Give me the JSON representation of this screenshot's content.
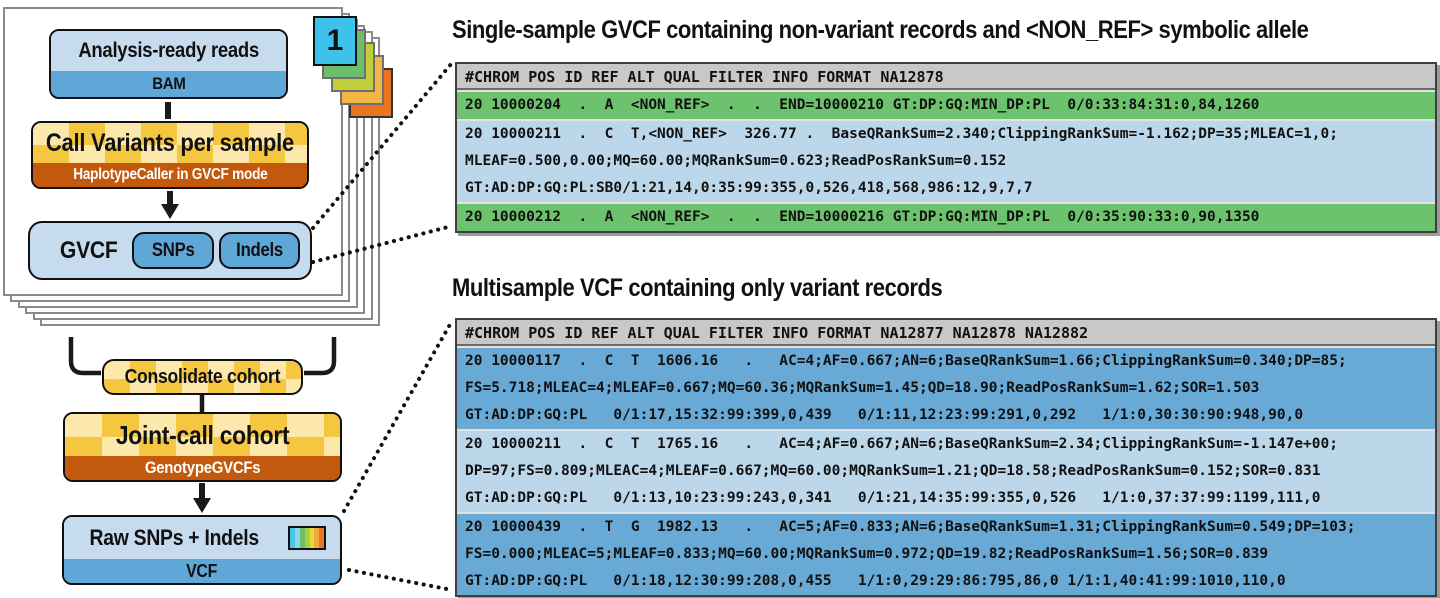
{
  "flowchart": {
    "sample_cards": {
      "front_label": "1"
    },
    "analysis_box": {
      "title": "Analysis-ready reads",
      "format": "BAM"
    },
    "call_variants_box": {
      "title": "Call Variants per sample",
      "tool": "HaplotypeCaller in GVCF mode"
    },
    "gvcf_box": {
      "label": "GVCF",
      "pills": [
        "SNPs",
        "Indels"
      ]
    },
    "consolidate_box": {
      "label": "Consolidate cohort"
    },
    "joint_call_box": {
      "title": "Joint-call cohort",
      "tool": "GenotypeGVCFs"
    },
    "raw_box": {
      "title": "Raw SNPs + Indels",
      "format": "VCF",
      "rainbow_colors": [
        "#45C5EC",
        "#8ED4EA",
        "#6CBE6C",
        "#A9CF3D",
        "#E2DC3F",
        "#F3A93C",
        "#EC7524"
      ]
    }
  },
  "gvcf_table": {
    "title": "Single-sample GVCF containing non-variant records and <NON_REF> symbolic allele",
    "header": "#CHROM POS ID REF ALT QUAL FILTER INFO FORMAT NA12878",
    "rows": [
      {
        "color": "green",
        "lines": [
          "20 10000204  .  A  <NON_REF>  .  .  END=10000210 GT:DP:GQ:MIN_DP:PL  0/0:33:84:31:0,84,1260"
        ]
      },
      {
        "color": "blue_light",
        "lines": [
          "20 10000211  .  C  T,<NON_REF>  326.77 .  BaseQRankSum=2.340;ClippingRankSum=-1.162;DP=35;MLEAC=1,0;",
          "MLEAF=0.500,0.00;MQ=60.00;MQRankSum=0.623;ReadPosRankSum=0.152",
          "GT:AD:DP:GQ:PL:SB0/1:21,14,0:35:99:355,0,526,418,568,986:12,9,7,7"
        ]
      },
      {
        "color": "green",
        "lines": [
          "20 10000212  .  A  <NON_REF>  .  .  END=10000216 GT:DP:GQ:MIN_DP:PL  0/0:35:90:33:0,90,1350"
        ]
      }
    ]
  },
  "vcf_table": {
    "title": "Multisample VCF containing only variant records",
    "header": "#CHROM POS ID REF ALT QUAL FILTER INFO FORMAT NA12877 NA12878 NA12882",
    "rows": [
      {
        "color": "blue_mid",
        "lines": [
          "20 10000117  .  C  T  1606.16   .   AC=4;AF=0.667;AN=6;BaseQRankSum=1.66;ClippingRankSum=0.340;DP=85;",
          "FS=5.718;MLEAC=4;MLEAF=0.667;MQ=60.36;MQRankSum=1.45;QD=18.90;ReadPosRankSum=1.62;SOR=1.503",
          "GT:AD:DP:GQ:PL   0/1:17,15:32:99:399,0,439   0/1:11,12:23:99:291,0,292   1/1:0,30:30:90:948,90,0"
        ]
      },
      {
        "color": "blue_light",
        "lines": [
          "20 10000211  .  C  T  1765.16   .   AC=4;AF=0.667;AN=6;BaseQRankSum=2.34;ClippingRankSum=-1.147e+00;",
          "DP=97;FS=0.809;MLEAC=4;MLEAF=0.667;MQ=60.00;MQRankSum=1.21;QD=18.58;ReadPosRankSum=0.152;SOR=0.831",
          "GT:AD:DP:GQ:PL   0/1:13,10:23:99:243,0,341   0/1:21,14:35:99:355,0,526   1/1:0,37:37:99:1199,111,0"
        ]
      },
      {
        "color": "blue_mid",
        "lines": [
          "20 10000439  .  T  G  1982.13   .   AC=5;AF=0.833;AN=6;BaseQRankSum=1.31;ClippingRankSum=0.549;DP=103;",
          "FS=0.000;MLEAC=5;MLEAF=0.833;MQ=60.00;MQRankSum=0.972;QD=19.82;ReadPosRankSum=1.56;SOR=0.839",
          "GT:AD:DP:GQ:PL   0/1:18,12:30:99:208,0,455   1/1:0,29:29:86:795,86,0 1/1:1,40:41:99:1010,110,0"
        ]
      }
    ]
  },
  "colors": {
    "vars": {
      "light_blue": "#C6DCEE",
      "mid_blue": "#5FA7D7",
      "row_green": "#6DC36D",
      "row_blue_light": "#BCD7EA",
      "row_blue_mid": "#68A9D6",
      "header_gray": "#C8C8C8",
      "gold": "#F5C63F",
      "cream": "#FCE8AB",
      "orange": "#C2590D"
    },
    "sample_cards": [
      "#3EC1EA",
      "#6CBE6C",
      "#C2CE3E",
      "#F3B546",
      "#EC7524"
    ]
  }
}
